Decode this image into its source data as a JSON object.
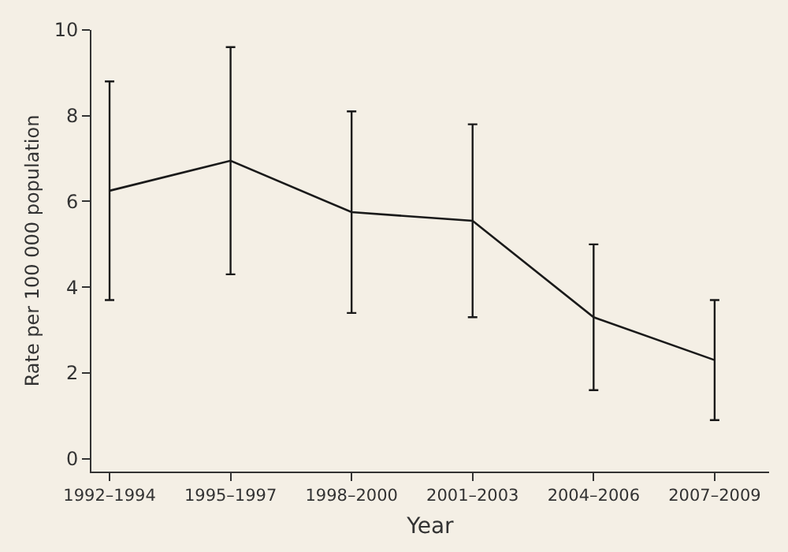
{
  "chart_data": {
    "type": "line",
    "xlabel": "Year",
    "ylabel": "Rate per 100 000 population",
    "categories": [
      "1992–1994",
      "1995–1997",
      "1998–2000",
      "2001–2003",
      "2004–2006",
      "2007–2009"
    ],
    "values": [
      6.25,
      6.95,
      5.75,
      5.55,
      3.3,
      2.3
    ],
    "errors": [
      [
        3.7,
        8.8
      ],
      [
        4.3,
        9.6
      ],
      [
        3.4,
        8.1
      ],
      [
        3.3,
        7.8
      ],
      [
        1.6,
        5.0
      ],
      [
        0.9,
        3.7
      ]
    ],
    "color": "#1a1a1a",
    "ylim": [
      -0.3,
      10
    ],
    "yticks": [
      0,
      2,
      4,
      6,
      8,
      10
    ],
    "grid": false,
    "legend": false,
    "marker": "none",
    "line_style": "solid"
  }
}
